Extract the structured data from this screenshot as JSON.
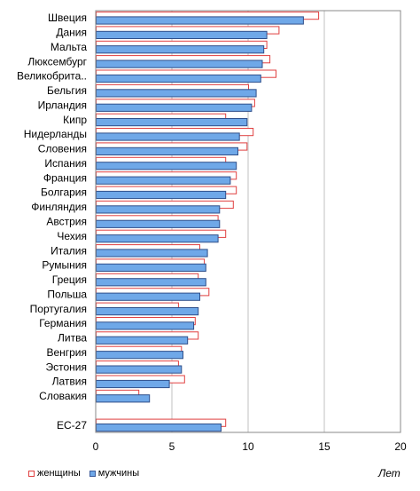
{
  "chart_data": {
    "type": "bar",
    "orientation": "horizontal",
    "categories": [
      "Швеция",
      "Дания",
      "Мальта",
      "Люксембург",
      "Великобрита..",
      "Бельгия",
      "Ирландия",
      "Кипр",
      "Нидерланды",
      "Словения",
      "Испания",
      "Франция",
      "Болгария",
      "Финляндия",
      "Австрия",
      "Чехия",
      "Италия",
      "Румыния",
      "Греция",
      "Польша",
      "Португалия",
      "Германия",
      "Литва",
      "Венгрия",
      "Эстония",
      "Латвия",
      "Словакия",
      "",
      "ЕС-27"
    ],
    "series": [
      {
        "name": "мужчины",
        "color": "#6fa8e8",
        "values": [
          13.6,
          11.2,
          11.0,
          10.9,
          10.8,
          10.5,
          10.2,
          9.9,
          9.4,
          9.3,
          9.2,
          8.8,
          8.5,
          8.1,
          8.1,
          8.0,
          7.3,
          7.2,
          7.2,
          6.8,
          6.7,
          6.4,
          6.0,
          5.7,
          5.6,
          4.8,
          3.5,
          null,
          8.2
        ]
      },
      {
        "name": "женщины",
        "color": "#e04040",
        "values": [
          14.6,
          12.0,
          11.2,
          11.4,
          11.8,
          10.0,
          10.4,
          8.5,
          10.3,
          9.9,
          8.5,
          9.2,
          9.2,
          9.0,
          8.0,
          8.5,
          6.8,
          7.1,
          6.7,
          7.4,
          5.4,
          6.5,
          6.7,
          5.6,
          5.4,
          5.8,
          2.8,
          null,
          8.5
        ]
      }
    ],
    "x_ticks": [
      "0",
      "5",
      "10",
      "15",
      "20"
    ],
    "xlim": [
      0,
      20
    ],
    "grid": true,
    "legend_position": "bottom-left"
  },
  "legend": {
    "women": "женщины",
    "men": "мужчины"
  },
  "unit": "Лет"
}
